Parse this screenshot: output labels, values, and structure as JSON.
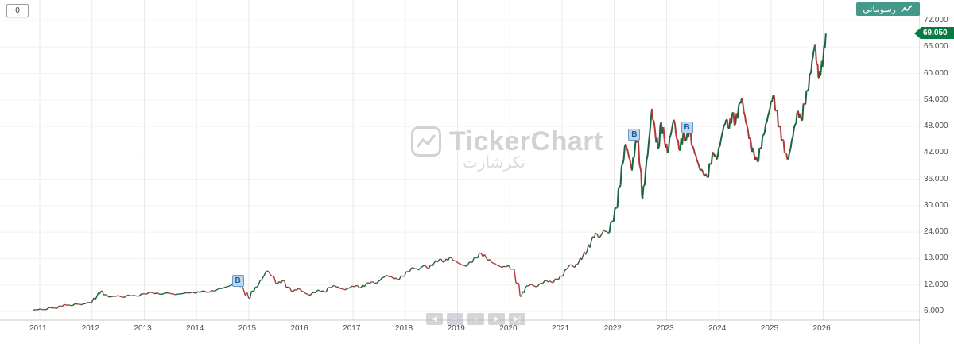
{
  "toolbar": {
    "mode_value": "0",
    "my_charts_label": "رسوماتي",
    "my_charts_color": "#45998a"
  },
  "watermark": {
    "title": "TickerChart",
    "subtitle": "تكرشارت"
  },
  "price_tag": {
    "value": "69.050",
    "color": "#0a7a43"
  },
  "markers": [
    {
      "label": "B",
      "year": 2014.8,
      "price": 12.9
    },
    {
      "label": "B",
      "year": 2022.39,
      "price": 46.0
    },
    {
      "label": "B",
      "year": 2023.4,
      "price": 47.6
    }
  ],
  "nav": {
    "buttons": [
      {
        "name": "pan-left",
        "symbol": "◀"
      },
      {
        "name": "zoom-out",
        "symbol": "−"
      },
      {
        "name": "zoom-in",
        "symbol": "+"
      },
      {
        "name": "pan-right",
        "symbol": "▶"
      },
      {
        "name": "jump-to-end",
        "symbol": "▶|"
      }
    ]
  },
  "chart_data": {
    "type": "line",
    "title": "",
    "xlabel": "",
    "ylabel": "",
    "grid": true,
    "legend": "none",
    "up_color": "#17643f",
    "down_color": "#b03a3a",
    "x_range": [
      2010.85,
      2026.55
    ],
    "ylim": [
      4.2,
      74.6
    ],
    "x_tick_labels": [
      "2011",
      "2012",
      "2013",
      "2014",
      "2015",
      "2016",
      "2017",
      "2018",
      "2019",
      "2020",
      "2021",
      "2022",
      "2023",
      "2024",
      "2025",
      "2026"
    ],
    "y_tick_labels": [
      "6.000",
      "12.000",
      "18.000",
      "24.000",
      "30.000",
      "36.000",
      "42.000",
      "48.000",
      "54.000",
      "60.000",
      "66.000",
      "72.000"
    ],
    "last_price": 69.05,
    "series": [
      {
        "name": "price",
        "points": [
          [
            2010.88,
            6.3
          ],
          [
            2011.0,
            6.5
          ],
          [
            2011.1,
            6.4
          ],
          [
            2011.2,
            6.9
          ],
          [
            2011.3,
            6.7
          ],
          [
            2011.4,
            7.2
          ],
          [
            2011.5,
            7.5
          ],
          [
            2011.6,
            7.3
          ],
          [
            2011.7,
            7.7
          ],
          [
            2011.8,
            7.5
          ],
          [
            2011.9,
            7.9
          ],
          [
            2012.0,
            8.1
          ],
          [
            2012.1,
            9.6
          ],
          [
            2012.17,
            10.6
          ],
          [
            2012.25,
            9.8
          ],
          [
            2012.35,
            9.3
          ],
          [
            2012.5,
            9.6
          ],
          [
            2012.6,
            9.2
          ],
          [
            2012.7,
            9.7
          ],
          [
            2012.85,
            9.5
          ],
          [
            2013.0,
            10.0
          ],
          [
            2013.15,
            10.3
          ],
          [
            2013.3,
            9.9
          ],
          [
            2013.45,
            10.2
          ],
          [
            2013.6,
            9.8
          ],
          [
            2013.75,
            10.1
          ],
          [
            2013.9,
            10.3
          ],
          [
            2014.0,
            10.2
          ],
          [
            2014.1,
            10.6
          ],
          [
            2014.25,
            10.4
          ],
          [
            2014.4,
            11.0
          ],
          [
            2014.55,
            11.5
          ],
          [
            2014.7,
            12.1
          ],
          [
            2014.8,
            12.6
          ],
          [
            2014.9,
            11.0
          ],
          [
            2015.0,
            9.0
          ],
          [
            2015.08,
            10.6
          ],
          [
            2015.15,
            11.5
          ],
          [
            2015.25,
            13.2
          ],
          [
            2015.35,
            15.2
          ],
          [
            2015.45,
            14.0
          ],
          [
            2015.55,
            12.2
          ],
          [
            2015.65,
            13.0
          ],
          [
            2015.75,
            11.5
          ],
          [
            2015.85,
            10.6
          ],
          [
            2015.95,
            11.2
          ],
          [
            2016.05,
            10.5
          ],
          [
            2016.15,
            9.7
          ],
          [
            2016.25,
            10.3
          ],
          [
            2016.35,
            10.8
          ],
          [
            2016.45,
            10.4
          ],
          [
            2016.55,
            11.4
          ],
          [
            2016.65,
            11.8
          ],
          [
            2016.75,
            11.2
          ],
          [
            2016.85,
            10.9
          ],
          [
            2016.95,
            11.5
          ],
          [
            2017.05,
            11.8
          ],
          [
            2017.15,
            11.4
          ],
          [
            2017.25,
            12.2
          ],
          [
            2017.35,
            12.7
          ],
          [
            2017.45,
            12.4
          ],
          [
            2017.55,
            13.6
          ],
          [
            2017.65,
            14.2
          ],
          [
            2017.75,
            13.7
          ],
          [
            2017.85,
            13.3
          ],
          [
            2017.95,
            14.0
          ],
          [
            2018.05,
            15.0
          ],
          [
            2018.15,
            15.9
          ],
          [
            2018.25,
            15.4
          ],
          [
            2018.35,
            16.4
          ],
          [
            2018.45,
            15.8
          ],
          [
            2018.55,
            17.0
          ],
          [
            2018.65,
            17.8
          ],
          [
            2018.75,
            17.3
          ],
          [
            2018.85,
            18.3
          ],
          [
            2018.95,
            17.5
          ],
          [
            2019.05,
            16.8
          ],
          [
            2019.15,
            16.3
          ],
          [
            2019.25,
            17.2
          ],
          [
            2019.35,
            18.2
          ],
          [
            2019.45,
            19.2
          ],
          [
            2019.55,
            18.1
          ],
          [
            2019.65,
            17.2
          ],
          [
            2019.75,
            16.5
          ],
          [
            2019.85,
            16.0
          ],
          [
            2019.95,
            16.3
          ],
          [
            2020.05,
            15.6
          ],
          [
            2020.15,
            12.4
          ],
          [
            2020.22,
            9.4
          ],
          [
            2020.3,
            11.5
          ],
          [
            2020.4,
            12.2
          ],
          [
            2020.5,
            11.6
          ],
          [
            2020.6,
            12.4
          ],
          [
            2020.7,
            13.0
          ],
          [
            2020.8,
            12.6
          ],
          [
            2020.9,
            13.3
          ],
          [
            2021.0,
            14.0
          ],
          [
            2021.08,
            15.5
          ],
          [
            2021.16,
            16.6
          ],
          [
            2021.24,
            16.0
          ],
          [
            2021.32,
            17.2
          ],
          [
            2021.4,
            18.6
          ],
          [
            2021.48,
            19.8
          ],
          [
            2021.56,
            22.0
          ],
          [
            2021.64,
            23.8
          ],
          [
            2021.72,
            22.8
          ],
          [
            2021.8,
            24.6
          ],
          [
            2021.88,
            23.8
          ],
          [
            2021.96,
            26.5
          ],
          [
            2022.04,
            29.5
          ],
          [
            2022.1,
            34.0
          ],
          [
            2022.16,
            39.5
          ],
          [
            2022.22,
            44.0
          ],
          [
            2022.28,
            41.0
          ],
          [
            2022.34,
            38.0
          ],
          [
            2022.4,
            43.5
          ],
          [
            2022.44,
            46.0
          ],
          [
            2022.5,
            38.5
          ],
          [
            2022.54,
            31.5
          ],
          [
            2022.6,
            38.0
          ],
          [
            2022.66,
            44.5
          ],
          [
            2022.72,
            52.0
          ],
          [
            2022.78,
            47.0
          ],
          [
            2022.84,
            43.0
          ],
          [
            2022.9,
            49.0
          ],
          [
            2022.96,
            45.0
          ],
          [
            2023.02,
            42.0
          ],
          [
            2023.08,
            46.0
          ],
          [
            2023.14,
            49.5
          ],
          [
            2023.2,
            45.0
          ],
          [
            2023.26,
            42.5
          ],
          [
            2023.32,
            46.5
          ],
          [
            2023.38,
            45.0
          ],
          [
            2023.44,
            47.5
          ],
          [
            2023.5,
            43.5
          ],
          [
            2023.56,
            41.5
          ],
          [
            2023.62,
            39.0
          ],
          [
            2023.7,
            37.5
          ],
          [
            2023.78,
            36.5
          ],
          [
            2023.84,
            39.5
          ],
          [
            2023.9,
            42.0
          ],
          [
            2023.96,
            40.5
          ],
          [
            2024.02,
            43.5
          ],
          [
            2024.08,
            47.0
          ],
          [
            2024.14,
            49.5
          ],
          [
            2024.2,
            47.5
          ],
          [
            2024.26,
            51.0
          ],
          [
            2024.32,
            48.5
          ],
          [
            2024.38,
            52.5
          ],
          [
            2024.44,
            54.5
          ],
          [
            2024.5,
            50.5
          ],
          [
            2024.56,
            47.0
          ],
          [
            2024.62,
            44.0
          ],
          [
            2024.68,
            41.5
          ],
          [
            2024.74,
            40.0
          ],
          [
            2024.8,
            43.0
          ],
          [
            2024.86,
            46.0
          ],
          [
            2024.92,
            49.0
          ],
          [
            2024.98,
            52.0
          ],
          [
            2025.04,
            55.0
          ],
          [
            2025.1,
            51.5
          ],
          [
            2025.16,
            48.0
          ],
          [
            2025.22,
            45.0
          ],
          [
            2025.28,
            42.0
          ],
          [
            2025.33,
            40.5
          ],
          [
            2025.4,
            45.0
          ],
          [
            2025.46,
            48.5
          ],
          [
            2025.52,
            51.5
          ],
          [
            2025.58,
            49.5
          ],
          [
            2025.64,
            53.0
          ],
          [
            2025.7,
            56.0
          ],
          [
            2025.76,
            60.0
          ],
          [
            2025.8,
            63.5
          ],
          [
            2025.84,
            66.5
          ],
          [
            2025.88,
            62.0
          ],
          [
            2025.92,
            59.0
          ],
          [
            2025.96,
            61.0
          ],
          [
            2026.0,
            63.5
          ],
          [
            2026.05,
            69.05
          ]
        ]
      }
    ]
  }
}
